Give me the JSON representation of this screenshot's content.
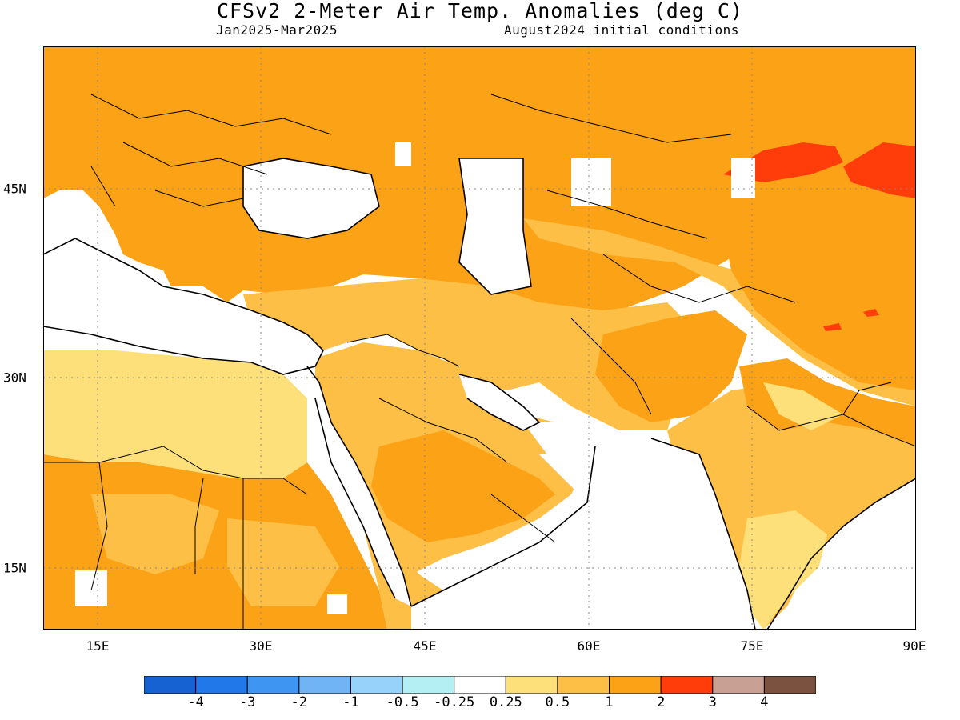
{
  "header": {
    "title": "CFSv2 2-Meter Air Temp. Anomalies (deg C)",
    "period": "Jan2025-Mar2025",
    "init": "August2024 initial conditions"
  },
  "map": {
    "lon_labels": [
      "15E",
      "30E",
      "45E",
      "60E",
      "75E",
      "90E"
    ],
    "lat_labels": [
      "45N",
      "30N",
      "15N"
    ],
    "colors": {
      "ocean": "#ffffff",
      "c_0_25_0_5": "#fee07a",
      "c_0_5_1": "#fdbf46",
      "c_1_2": "#fba216",
      "c_2_3": "#ff3d0a",
      "coast": "#000000"
    }
  },
  "colorbar": {
    "colors": [
      "#1762d3",
      "#2178e8",
      "#3f95f2",
      "#70b4f5",
      "#96d2f9",
      "#b4f0f3",
      "#ffffff",
      "#fee07a",
      "#fdbf46",
      "#fba216",
      "#ff3d0a",
      "#c8a094",
      "#7b5240"
    ],
    "labels": [
      "-4",
      "-3",
      "-2",
      "-1",
      "-0.5",
      "-0.25",
      "0.25",
      "0.5",
      "1",
      "2",
      "3",
      "4"
    ]
  }
}
